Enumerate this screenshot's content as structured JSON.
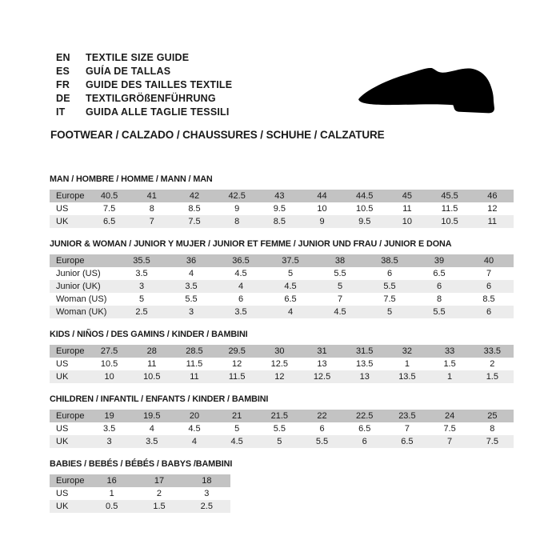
{
  "colors": {
    "bg": "#ffffff",
    "text": "#1a1a1a",
    "hdr": "#c3c3c3",
    "stripe": "#ececec",
    "icon": "#000000"
  },
  "header": {
    "languages": [
      {
        "code": "EN",
        "text": "TEXTILE SIZE GUIDE"
      },
      {
        "code": "ES",
        "text": "GUÍA DE TALLAS"
      },
      {
        "code": "FR",
        "text": "GUIDE DES TAILLES TEXTILE"
      },
      {
        "code": "DE",
        "text": "TEXTILGRÖßENFÜHRUNG"
      },
      {
        "code": "IT",
        "text": "GUIDA ALLE TAGLIE TESSILI"
      }
    ],
    "category_line": "FOOTWEAR / CALZADO / CHAUSSURES / SCHUHE / CALZATURE",
    "shoe_icon": "dress-shoe-silhouette"
  },
  "tables": [
    {
      "title": "MAN / HOMBRE / HOMME / MANN / MAN",
      "rows": [
        {
          "label": "Europe",
          "values": [
            "40.5",
            "41",
            "42",
            "42.5",
            "43",
            "44",
            "44.5",
            "45",
            "45.5",
            "46"
          ]
        },
        {
          "label": "US",
          "values": [
            "7.5",
            "8",
            "8.5",
            "9",
            "9.5",
            "10",
            "10.5",
            "11",
            "11.5",
            "12"
          ]
        },
        {
          "label": "UK",
          "values": [
            "6.5",
            "7",
            "7.5",
            "8",
            "8.5",
            "9",
            "9.5",
            "10",
            "10.5",
            "11"
          ]
        }
      ]
    },
    {
      "title": "JUNIOR & WOMAN / JUNIOR Y MUJER / JUNIOR ET FEMME / JUNIOR UND FRAU / JUNIOR E DONA",
      "rows": [
        {
          "label": "Europe",
          "values": [
            "35.5",
            "36",
            "36.5",
            "37.5",
            "38",
            "38.5",
            "39",
            "40"
          ]
        },
        {
          "label": "Junior (US)",
          "values": [
            "3.5",
            "4",
            "4.5",
            "5",
            "5.5",
            "6",
            "6.5",
            "7"
          ]
        },
        {
          "label": "Junior (UK)",
          "values": [
            "3",
            "3.5",
            "4",
            "4.5",
            "5",
            "5.5",
            "6",
            "6"
          ]
        },
        {
          "label": "Woman (US)",
          "values": [
            "5",
            "5.5",
            "6",
            "6.5",
            "7",
            "7.5",
            "8",
            "8.5"
          ]
        },
        {
          "label": "Woman (UK)",
          "values": [
            "2.5",
            "3",
            "3.5",
            "4",
            "4.5",
            "5",
            "5.5",
            "6"
          ]
        }
      ]
    },
    {
      "title": "KIDS / NIÑOS / DES GAMINS / KINDER / BAMBINI",
      "rows": [
        {
          "label": "Europe",
          "values": [
            "27.5",
            "28",
            "28.5",
            "29.5",
            "30",
            "31",
            "31.5",
            "32",
            "33",
            "33.5"
          ]
        },
        {
          "label": "US",
          "values": [
            "10.5",
            "11",
            "11.5",
            "12",
            "12.5",
            "13",
            "13.5",
            "1",
            "1.5",
            "2"
          ]
        },
        {
          "label": "UK",
          "values": [
            "10",
            "10.5",
            "11",
            "11.5",
            "12",
            "12.5",
            "13",
            "13.5",
            "1",
            "1.5"
          ]
        }
      ]
    },
    {
      "title": "CHILDREN / INFANTIL / ENFANTS / KINDER / BAMBINI",
      "rows": [
        {
          "label": "Europe",
          "values": [
            "19",
            "19.5",
            "20",
            "21",
            "21.5",
            "22",
            "22.5",
            "23.5",
            "24",
            "25"
          ]
        },
        {
          "label": "US",
          "values": [
            "3.5",
            "4",
            "4.5",
            "5",
            "5.5",
            "6",
            "6.5",
            "7",
            "7.5",
            "8"
          ]
        },
        {
          "label": "UK",
          "values": [
            "3",
            "3.5",
            "4",
            "4.5",
            "5",
            "5.5",
            "6",
            "6.5",
            "7",
            "7.5"
          ]
        }
      ]
    },
    {
      "title": "BABIES / BEBÉS / BÉBÉS / BABYS /BAMBINI",
      "rows": [
        {
          "label": "Europe",
          "values": [
            "16",
            "17",
            "18"
          ]
        },
        {
          "label": "US",
          "values": [
            "1",
            "2",
            "3"
          ]
        },
        {
          "label": "UK",
          "values": [
            "0.5",
            "1.5",
            "2.5"
          ]
        }
      ]
    }
  ]
}
